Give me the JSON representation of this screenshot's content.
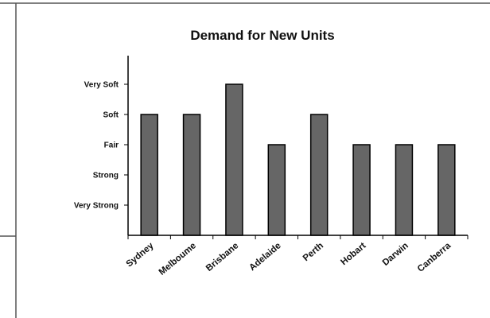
{
  "chart_data": {
    "type": "bar",
    "title": "Demand for New Units",
    "categories": [
      "Sydney",
      "Melboume",
      "Brisbane",
      "Adelaide",
      "Perth",
      "Hobart",
      "Darwin",
      "Canberra"
    ],
    "y_tick_labels": [
      "Very Strong",
      "Strong",
      "Fair",
      "Soft",
      "Very Soft"
    ],
    "values": [
      4,
      4,
      5,
      3,
      4,
      3,
      3,
      3
    ],
    "ylim": [
      0,
      5
    ],
    "grid": false,
    "bar_color": "#666666",
    "bar_outline_color": "#000000"
  }
}
